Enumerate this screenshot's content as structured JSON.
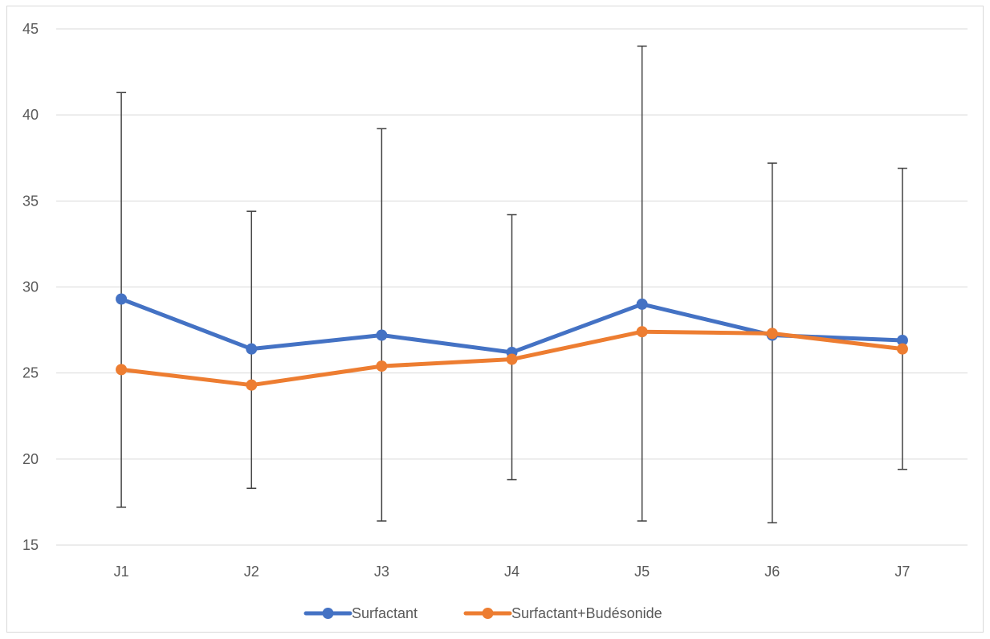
{
  "chart_data": {
    "type": "line",
    "categories": [
      "J1",
      "J2",
      "J3",
      "J4",
      "J5",
      "J6",
      "J7"
    ],
    "ylim": [
      15,
      45
    ],
    "yticks": [
      15,
      20,
      25,
      30,
      35,
      40,
      45
    ],
    "grid": true,
    "legend_position": "bottom",
    "series": [
      {
        "name": "Surfactant",
        "color": "#4472c4",
        "values": [
          29.3,
          26.4,
          27.2,
          26.2,
          29.0,
          27.2,
          26.9
        ]
      },
      {
        "name": "Surfactant+Budésonide",
        "color": "#ed7d31",
        "values": [
          25.2,
          24.3,
          25.4,
          25.8,
          27.4,
          27.3,
          26.4
        ]
      }
    ],
    "error_bars": {
      "color": "#404040",
      "low": [
        17.2,
        18.3,
        16.4,
        18.8,
        16.4,
        16.3,
        19.4
      ],
      "high": [
        41.3,
        34.4,
        39.2,
        34.2,
        44.0,
        37.2,
        36.9
      ]
    }
  }
}
